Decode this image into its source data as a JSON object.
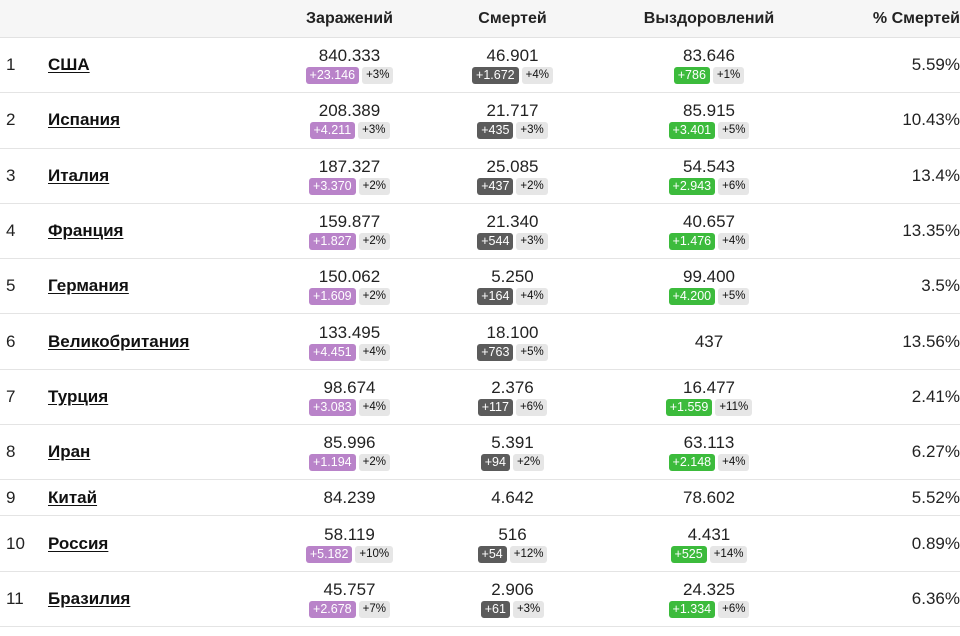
{
  "headers": {
    "cases": "Заражений",
    "deaths": "Смертей",
    "recovered": "Выздоровлений",
    "death_rate": "% Смертей"
  },
  "rows": [
    {
      "rank": "1",
      "country": "США",
      "cases": "840.333",
      "cases_new": "+23.146",
      "cases_pct": "+3%",
      "deaths": "46.901",
      "deaths_new": "+1.672",
      "deaths_pct": "+4%",
      "recovered": "83.646",
      "recovered_new": "+786",
      "recovered_pct": "+1%",
      "death_rate": "5.59%"
    },
    {
      "rank": "2",
      "country": "Испания",
      "cases": "208.389",
      "cases_new": "+4.211",
      "cases_pct": "+3%",
      "deaths": "21.717",
      "deaths_new": "+435",
      "deaths_pct": "+3%",
      "recovered": "85.915",
      "recovered_new": "+3.401",
      "recovered_pct": "+5%",
      "death_rate": "10.43%"
    },
    {
      "rank": "3",
      "country": "Италия",
      "cases": "187.327",
      "cases_new": "+3.370",
      "cases_pct": "+2%",
      "deaths": "25.085",
      "deaths_new": "+437",
      "deaths_pct": "+2%",
      "recovered": "54.543",
      "recovered_new": "+2.943",
      "recovered_pct": "+6%",
      "death_rate": "13.4%"
    },
    {
      "rank": "4",
      "country": "Франция",
      "cases": "159.877",
      "cases_new": "+1.827",
      "cases_pct": "+2%",
      "deaths": "21.340",
      "deaths_new": "+544",
      "deaths_pct": "+3%",
      "recovered": "40.657",
      "recovered_new": "+1.476",
      "recovered_pct": "+4%",
      "death_rate": "13.35%"
    },
    {
      "rank": "5",
      "country": "Германия",
      "cases": "150.062",
      "cases_new": "+1.609",
      "cases_pct": "+2%",
      "deaths": "5.250",
      "deaths_new": "+164",
      "deaths_pct": "+4%",
      "recovered": "99.400",
      "recovered_new": "+4.200",
      "recovered_pct": "+5%",
      "death_rate": "3.5%"
    },
    {
      "rank": "6",
      "country": "Великобритания",
      "cases": "133.495",
      "cases_new": "+4.451",
      "cases_pct": "+4%",
      "deaths": "18.100",
      "deaths_new": "+763",
      "deaths_pct": "+5%",
      "recovered": "437",
      "recovered_new": "",
      "recovered_pct": "",
      "death_rate": "13.56%"
    },
    {
      "rank": "7",
      "country": "Турция",
      "cases": "98.674",
      "cases_new": "+3.083",
      "cases_pct": "+4%",
      "deaths": "2.376",
      "deaths_new": "+117",
      "deaths_pct": "+6%",
      "recovered": "16.477",
      "recovered_new": "+1.559",
      "recovered_pct": "+11%",
      "death_rate": "2.41%"
    },
    {
      "rank": "8",
      "country": "Иран",
      "cases": "85.996",
      "cases_new": "+1.194",
      "cases_pct": "+2%",
      "deaths": "5.391",
      "deaths_new": "+94",
      "deaths_pct": "+2%",
      "recovered": "63.113",
      "recovered_new": "+2.148",
      "recovered_pct": "+4%",
      "death_rate": "6.27%"
    },
    {
      "rank": "9",
      "country": "Китай",
      "cases": "84.239",
      "cases_new": "",
      "cases_pct": "",
      "deaths": "4.642",
      "deaths_new": "",
      "deaths_pct": "",
      "recovered": "78.602",
      "recovered_new": "",
      "recovered_pct": "",
      "death_rate": "5.52%"
    },
    {
      "rank": "10",
      "country": "Россия",
      "cases": "58.119",
      "cases_new": "+5.182",
      "cases_pct": "+10%",
      "deaths": "516",
      "deaths_new": "+54",
      "deaths_pct": "+12%",
      "recovered": "4.431",
      "recovered_new": "+525",
      "recovered_pct": "+14%",
      "death_rate": "0.89%"
    },
    {
      "rank": "11",
      "country": "Бразилия",
      "cases": "45.757",
      "cases_new": "+2.678",
      "cases_pct": "+7%",
      "deaths": "2.906",
      "deaths_new": "+61",
      "deaths_pct": "+3%",
      "recovered": "24.325",
      "recovered_new": "+1.334",
      "recovered_pct": "+6%",
      "death_rate": "6.36%"
    }
  ],
  "colors": {
    "cases_badge": "#b983c9",
    "deaths_badge": "#5b5b5b",
    "recovered_badge": "#3cbb3c",
    "pct_badge": "#e6e6e6"
  }
}
